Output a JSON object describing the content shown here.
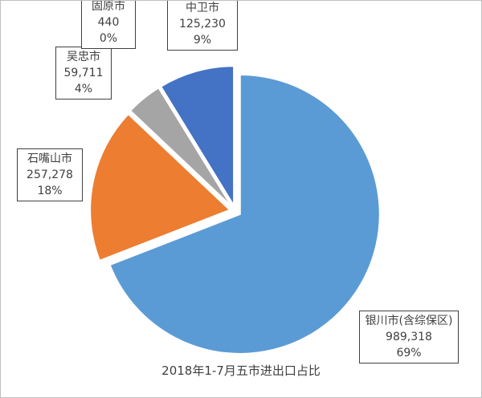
{
  "chart_data": {
    "type": "pie",
    "title": "2018年1-7月五市进出口占比",
    "categories": [
      "银川市(含综保区)",
      "石嘴山市",
      "吴忠市",
      "固原市",
      "中卫市"
    ],
    "values": [
      989318,
      257278,
      59711,
      440,
      125230
    ],
    "value_labels": [
      "989,318",
      "257,278",
      "59,711",
      "440",
      "125,230"
    ],
    "percent_labels": [
      "69%",
      "18%",
      "4%",
      "0%",
      "9%"
    ],
    "colors": [
      "#5b9bd5",
      "#ed7d31",
      "#a5a5a5",
      "#ffc000",
      "#4472c4"
    ]
  }
}
